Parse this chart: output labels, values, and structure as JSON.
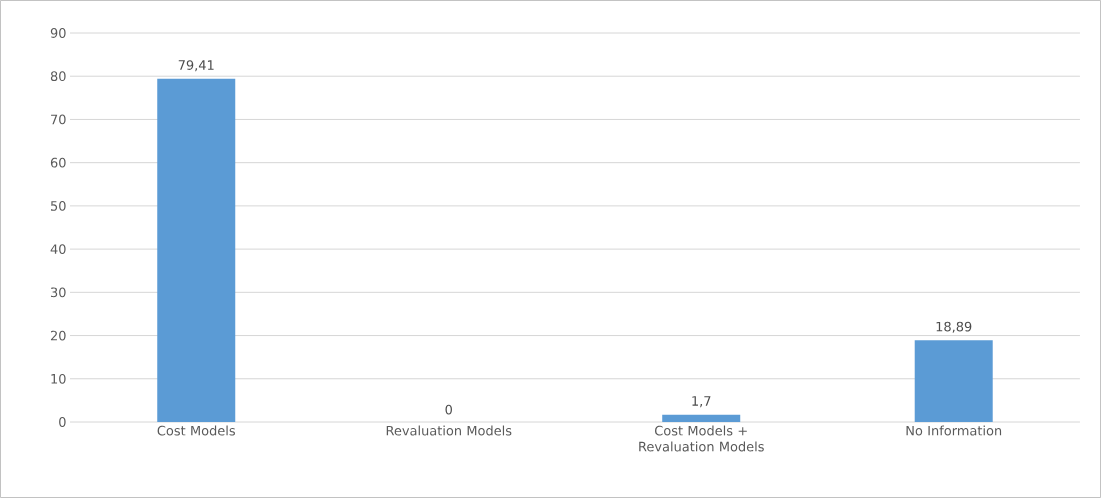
{
  "chart_data": {
    "type": "bar",
    "categories": [
      "Cost Models",
      "Revaluation Models",
      "Cost Models + Revaluation Models",
      "No Information"
    ],
    "values": [
      79.41,
      0,
      1.7,
      18.89
    ],
    "value_labels": [
      "79,41",
      "0",
      "1,7",
      "18,89"
    ],
    "color": "#5b9bd5",
    "ylim": [
      0,
      90
    ],
    "yticks": [
      0,
      10,
      20,
      30,
      40,
      50,
      60,
      70,
      80,
      90
    ],
    "grid": "y"
  }
}
